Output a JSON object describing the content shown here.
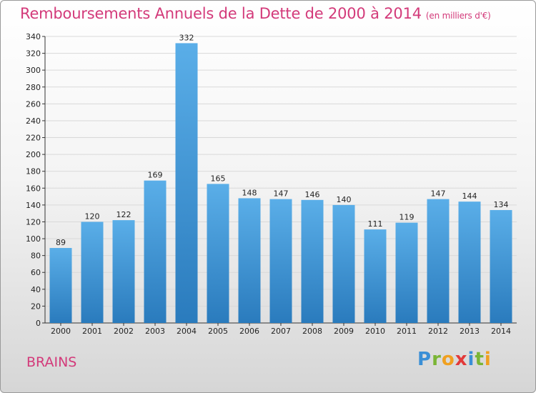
{
  "title": "Remboursements Annuels de la Dette de 2000 à 2014",
  "unit": "(en milliers d'€)",
  "commune": "BRAINS",
  "logo": {
    "letters": [
      {
        "ch": "P",
        "color": "#3a8fd6"
      },
      {
        "ch": "r",
        "color": "#7ab535"
      },
      {
        "ch": "o",
        "color": "#f0a020"
      },
      {
        "ch": "x",
        "color": "#e23a3a"
      },
      {
        "ch": "i",
        "color": "#3a8fd6"
      },
      {
        "ch": "t",
        "color": "#7ab535"
      },
      {
        "ch": "i",
        "color": "#f0a020"
      }
    ]
  },
  "chart_data": {
    "type": "bar",
    "categories": [
      "2000",
      "2001",
      "2002",
      "2003",
      "2004",
      "2005",
      "2006",
      "2007",
      "2008",
      "2009",
      "2010",
      "2011",
      "2012",
      "2013",
      "2014"
    ],
    "values": [
      89,
      120,
      122,
      169,
      332,
      165,
      148,
      147,
      146,
      140,
      111,
      119,
      147,
      144,
      134
    ],
    "ylim": [
      0,
      340
    ],
    "yticks": [
      0,
      20,
      40,
      60,
      80,
      100,
      120,
      140,
      160,
      180,
      200,
      220,
      240,
      260,
      280,
      300,
      320,
      340
    ],
    "bar_color_top": "#5aaee8",
    "bar_color_bottom": "#2a7bbd",
    "grid": true
  }
}
